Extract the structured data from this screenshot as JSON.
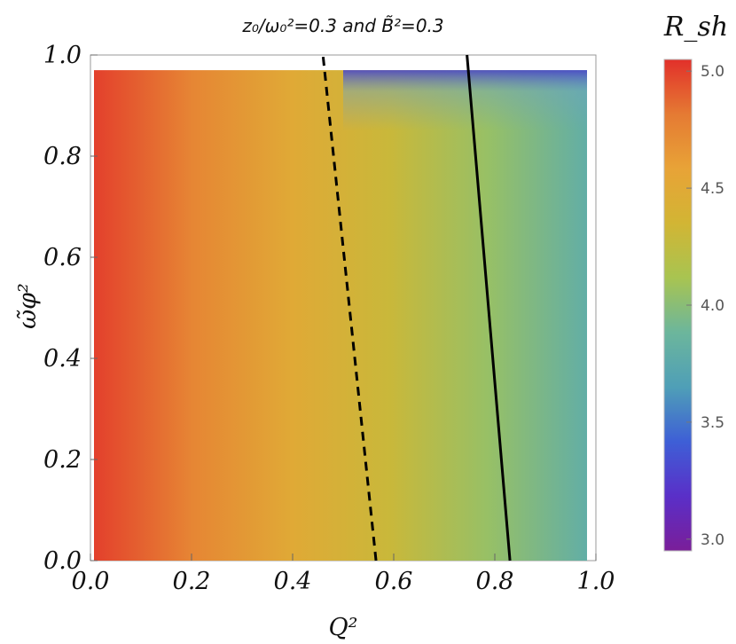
{
  "chart_data": {
    "type": "heatmap",
    "title": "z₀/ω₀²=0.3 and B̃²=0.3",
    "xlabel": "Q²",
    "ylabel": "ω̃φ²",
    "xlim": [
      0.0,
      1.0
    ],
    "ylim": [
      0.0,
      1.0
    ],
    "x_ticks": [
      "0.0",
      "0.2",
      "0.4",
      "0.6",
      "0.8",
      "1.0"
    ],
    "y_ticks": [
      "0.0",
      "0.2",
      "0.4",
      "0.6",
      "0.8",
      "1.0"
    ],
    "colorbar": {
      "title": "R_sh",
      "range": [
        2.95,
        5.05
      ],
      "ticks": [
        "3.0",
        "3.5",
        "4.0",
        "4.5",
        "5.0"
      ],
      "colors": [
        "#7a1e99",
        "#5a2fc8",
        "#3e5fd6",
        "#4f9fb7",
        "#6cb69c",
        "#a8c451",
        "#d2b534",
        "#e8a337",
        "#e57a33",
        "#e2302a"
      ]
    },
    "field": {
      "description_values": "R_sh approx 5.0 at Q²=0 decreasing to about 3.8 at Q²=1; region near ω̃φ²≈1 drops toward 3.0",
      "x": [
        0.0,
        0.2,
        0.4,
        0.6,
        0.8,
        1.0
      ],
      "r_sh_at_x": [
        5.0,
        4.75,
        4.5,
        4.3,
        4.05,
        3.8
      ],
      "upper_boundary_y": 0.97
    },
    "series": [
      {
        "style": "dashed",
        "color": "#000000",
        "x": [
          0.565,
          0.46
        ],
        "y": [
          0.0,
          1.0
        ]
      },
      {
        "style": "solid",
        "color": "#000000",
        "x": [
          0.83,
          0.745
        ],
        "y": [
          0.0,
          1.0
        ]
      }
    ]
  }
}
